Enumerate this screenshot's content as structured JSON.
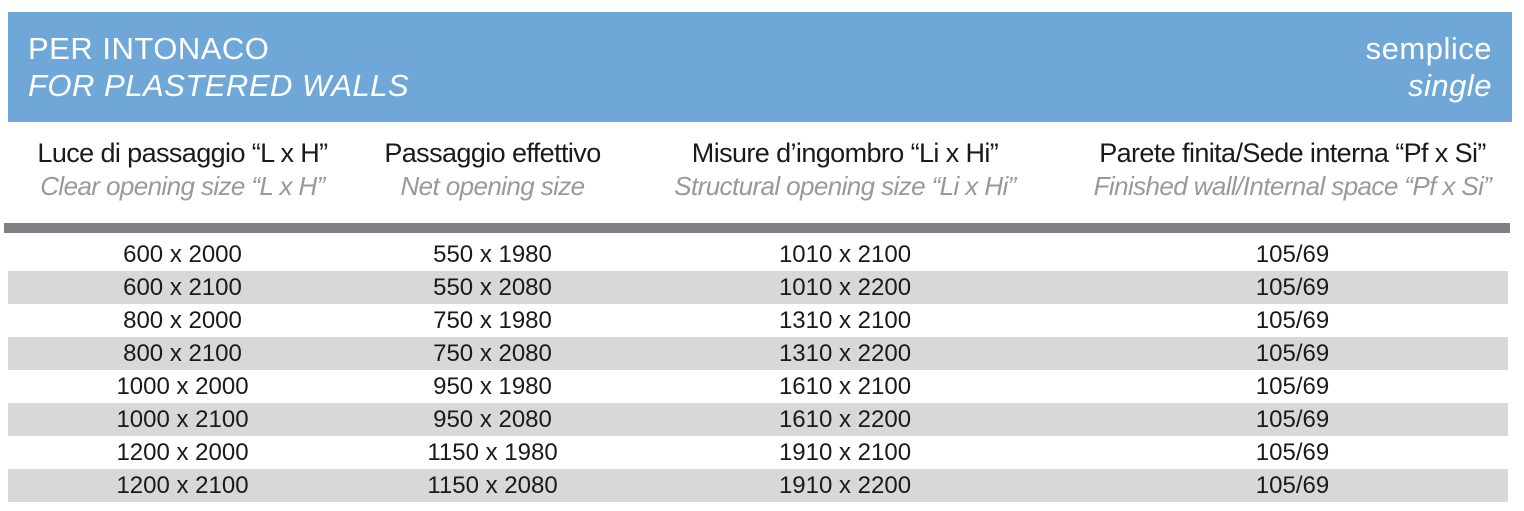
{
  "banner": {
    "title_it": "PER INTONACO",
    "title_en": "FOR PLASTERED WALLS",
    "variant_it": "semplice",
    "variant_en": "single",
    "bg_color": "#6fa8d8",
    "text_color": "#ffffff"
  },
  "table": {
    "columns": [
      {
        "it": "Luce di passaggio “L x H”",
        "en": "Clear opening size “L x H”"
      },
      {
        "it": "Passaggio effettivo",
        "en": "Net opening size"
      },
      {
        "it": "Misure d’ingombro “Li x Hi”",
        "en": "Structural opening size “Li x Hi”"
      },
      {
        "it": "Parete finita/Sede interna “Pf x Si”",
        "en": "Finished wall/Internal space “Pf x Si”"
      }
    ],
    "rows": [
      [
        "600 x 2000",
        "550 x 1980",
        "1010 x 2100",
        "105/69"
      ],
      [
        "600 x 2100",
        "550 x 2080",
        "1010 x 2200",
        "105/69"
      ],
      [
        "800 x 2000",
        "750 x 1980",
        "1310 x 2100",
        "105/69"
      ],
      [
        "800 x 2100",
        "750 x 2080",
        "1310 x 2200",
        "105/69"
      ],
      [
        "1000 x 2000",
        "950 x 1980",
        "1610 x 2100",
        "105/69"
      ],
      [
        "1000 x 2100",
        "950 x 2080",
        "1610 x 2200",
        "105/69"
      ],
      [
        "1200 x 2000",
        "1150 x 1980",
        "1910 x 2100",
        "105/69"
      ],
      [
        "1200 x 2100",
        "1150 x 2080",
        "1910 x 2200",
        "105/69"
      ]
    ],
    "stripe_color": "#d8d8d8",
    "separator_color": "#7f7f84"
  }
}
